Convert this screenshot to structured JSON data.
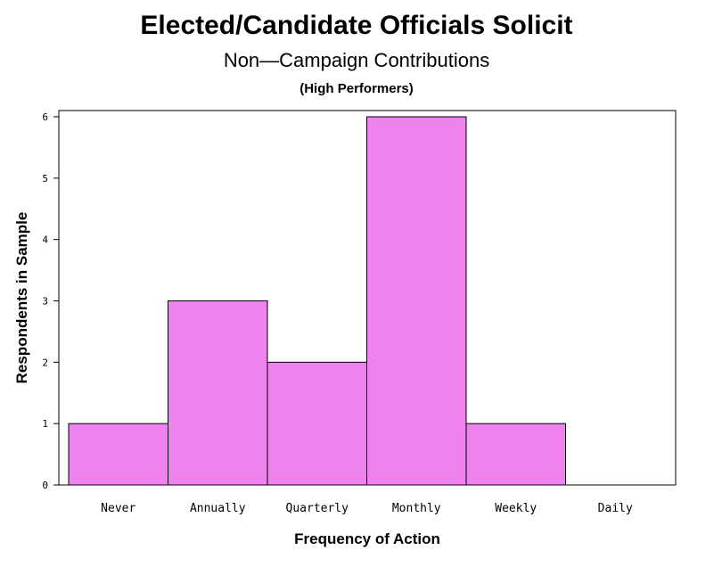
{
  "chart_data": {
    "type": "bar",
    "title": "Elected/Candidate Officials Solicit",
    "subtitle": "Non—Campaign Contributions",
    "subsubtitle": "(High Performers)",
    "xlabel": "Frequency of Action",
    "ylabel": "Respondents in Sample",
    "categories": [
      "Never",
      "Annually",
      "Quarterly",
      "Monthly",
      "Weekly",
      "Daily"
    ],
    "values": [
      1,
      3,
      2,
      6,
      1,
      0
    ],
    "yticks": [
      "0",
      "1",
      "2",
      "3",
      "4",
      "5",
      "6"
    ],
    "ylim": [
      0,
      6
    ],
    "bar_color": "#ee82ee",
    "edge_color": "#000000",
    "grid": false
  }
}
